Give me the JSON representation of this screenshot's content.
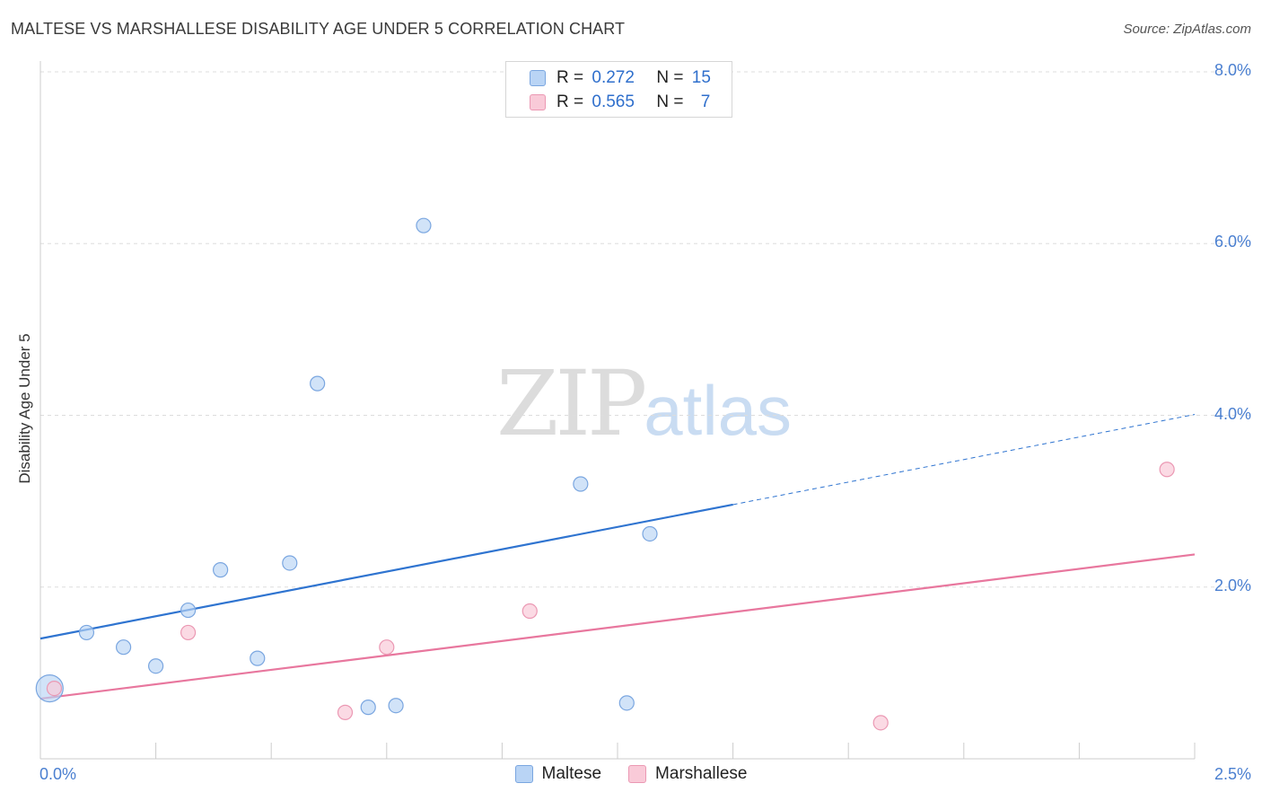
{
  "header": {
    "title": "MALTESE VS MARSHALLESE DISABILITY AGE UNDER 5 CORRELATION CHART",
    "source": "Source: ZipAtlas.com"
  },
  "watermark": {
    "zip": "ZIP",
    "atlas": "atlas"
  },
  "legend": {
    "r_label": "R =",
    "n_label": "N =",
    "rows": [
      {
        "series": "Maltese",
        "r": "0.272",
        "n": "15"
      },
      {
        "series": "Marshallese",
        "r": "0.565",
        "n": "7"
      }
    ]
  },
  "colors": {
    "maltese": "#2f74d0",
    "maltese_fill": "#b9d4f5",
    "marshallese": "#e8779e",
    "marshallese_fill": "#f9cad8",
    "tick_text": "#4a7fd0"
  },
  "chart_data": {
    "type": "scatter",
    "title": "MALTESE VS MARSHALLESE DISABILITY AGE UNDER 5 CORRELATION CHART",
    "xlabel": "",
    "ylabel": "Disability Age Under 5",
    "xlim": [
      0,
      2.5
    ],
    "ylim": [
      0,
      8.0
    ],
    "x_tick_labels": [
      "0.0%",
      "2.5%"
    ],
    "y_ticks": [
      2.0,
      4.0,
      6.0,
      8.0
    ],
    "y_tick_labels": [
      "2.0%",
      "4.0%",
      "6.0%",
      "8.0%"
    ],
    "grid": true,
    "legend_position": "bottom",
    "series": [
      {
        "name": "Maltese",
        "r": 0.272,
        "n": 15,
        "points": [
          {
            "x": 0.02,
            "y": 0.82,
            "size": "large"
          },
          {
            "x": 0.1,
            "y": 1.47
          },
          {
            "x": 0.18,
            "y": 1.3
          },
          {
            "x": 0.25,
            "y": 1.08
          },
          {
            "x": 0.32,
            "y": 1.73
          },
          {
            "x": 0.39,
            "y": 2.2
          },
          {
            "x": 0.47,
            "y": 1.17
          },
          {
            "x": 0.54,
            "y": 2.28
          },
          {
            "x": 0.6,
            "y": 4.37
          },
          {
            "x": 0.71,
            "y": 0.6
          },
          {
            "x": 0.77,
            "y": 0.62
          },
          {
            "x": 0.83,
            "y": 6.21
          },
          {
            "x": 1.17,
            "y": 3.2
          },
          {
            "x": 1.27,
            "y": 0.65
          },
          {
            "x": 1.32,
            "y": 2.62
          }
        ],
        "trend": {
          "x0": 0.0,
          "y0": 1.4,
          "x1": 1.5,
          "y1": 2.96,
          "dashed_to_x": 2.5,
          "dashed_to_y": 4.01
        }
      },
      {
        "name": "Marshallese",
        "r": 0.565,
        "n": 7,
        "points": [
          {
            "x": 0.03,
            "y": 0.82
          },
          {
            "x": 0.32,
            "y": 1.47
          },
          {
            "x": 0.66,
            "y": 0.54
          },
          {
            "x": 0.75,
            "y": 1.3
          },
          {
            "x": 1.06,
            "y": 1.72
          },
          {
            "x": 1.82,
            "y": 0.42
          },
          {
            "x": 2.44,
            "y": 3.37
          }
        ],
        "trend": {
          "x0": 0.0,
          "y0": 0.7,
          "x1": 2.5,
          "y1": 2.38
        }
      }
    ]
  }
}
